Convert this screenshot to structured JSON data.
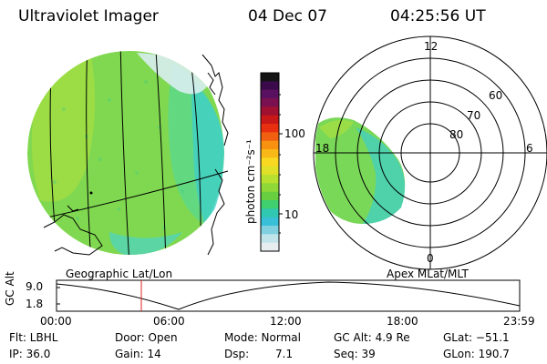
{
  "header": {
    "instrument": "Ultraviolet Imager",
    "date": "04 Dec 07",
    "time": "04:25:56 UT"
  },
  "colorbar": {
    "label": "photon cm⁻²s⁻¹",
    "ticks": [
      "100",
      "10"
    ],
    "colors": [
      "#141414",
      "#3a0a4a",
      "#5a1060",
      "#7a1050",
      "#a01030",
      "#c81818",
      "#e83010",
      "#f06010",
      "#f89010",
      "#f8b818",
      "#f8d820",
      "#e0e028",
      "#b8e030",
      "#90d838",
      "#68d040",
      "#40d070",
      "#30c8b0",
      "#38c0d8",
      "#80d0e0",
      "#c0e4ea",
      "#e8eef0"
    ]
  },
  "left_panel": {
    "caption": "Geographic Lat/Lon"
  },
  "right_panel": {
    "caption": "Apex MLat/MLT",
    "mlt_labels": {
      "top": "12",
      "left": "18",
      "right": "6",
      "bottom": "0"
    },
    "lat_labels": [
      "80",
      "70",
      "60"
    ]
  },
  "altitude_plot": {
    "ylabel": "GC Alt",
    "yticks": [
      "9.0",
      "1.8"
    ],
    "xticks": [
      "00:00",
      "06:00",
      "12:00",
      "18:00",
      "23:59"
    ],
    "cursor_time": "04:25:56",
    "cursor_color": "#e02020"
  },
  "info": {
    "flt": "Flt: LBHL",
    "ip": "IP: 36.0",
    "door": "Door: Open",
    "gain": "Gain: 14",
    "mode": "Mode: Normal",
    "dsp_label": "Dsp:",
    "dsp_value": "7.1",
    "gcalt": "GC Alt: 4.9 Re",
    "seq": "Seq: 39",
    "glat": "GLat: −51.1",
    "glon": "GLon: 190.7"
  }
}
